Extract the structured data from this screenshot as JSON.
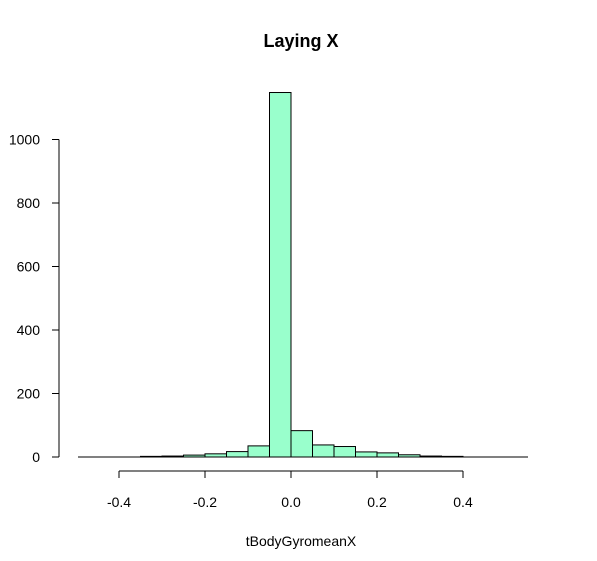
{
  "chart_data": {
    "type": "bar",
    "title": "Laying X",
    "xlabel": "tBodyGyromeanX",
    "ylabel": "",
    "bar_color": "#99ffcc",
    "bin_edges": [
      -0.35,
      -0.3,
      -0.25,
      -0.2,
      -0.15,
      -0.1,
      -0.05,
      0.0,
      0.05,
      0.1,
      0.15,
      0.2,
      0.25,
      0.3,
      0.35,
      0.4
    ],
    "values": [
      2,
      3,
      6,
      10,
      17,
      35,
      1148,
      83,
      38,
      33,
      16,
      13,
      7,
      3,
      2
    ],
    "xlim": [
      -0.5,
      0.55
    ],
    "ylim": [
      0,
      1150
    ],
    "x_ticks": [
      -0.4,
      -0.2,
      0.0,
      0.2,
      0.4
    ],
    "x_tick_labels": [
      "-0.4",
      "-0.2",
      "0.0",
      "0.2",
      "0.4"
    ],
    "y_ticks": [
      0,
      200,
      400,
      600,
      800,
      1000
    ],
    "y_tick_labels": [
      "0",
      "200",
      "400",
      "600",
      "800",
      "1000"
    ],
    "grid": false,
    "legend": "none"
  }
}
